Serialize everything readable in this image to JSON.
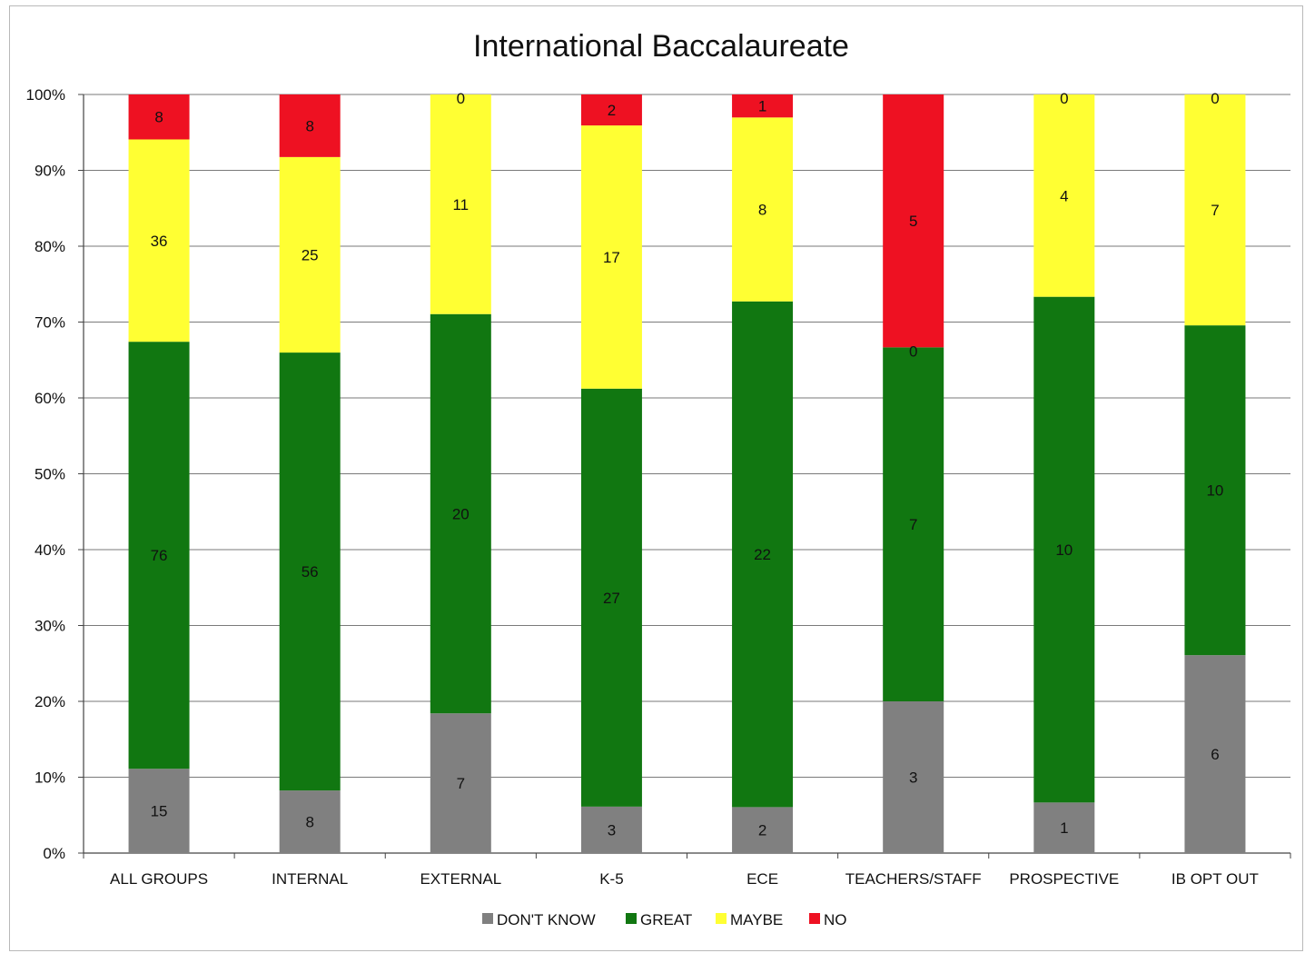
{
  "chart_data": {
    "type": "bar",
    "stacked": "percent",
    "title": "International Baccalaureate",
    "xlabel": "",
    "ylabel": "",
    "ylim": [
      0,
      100
    ],
    "yticks": [
      "0%",
      "10%",
      "20%",
      "30%",
      "40%",
      "50%",
      "60%",
      "70%",
      "80%",
      "90%",
      "100%"
    ],
    "categories": [
      "ALL GROUPS",
      "INTERNAL",
      "EXTERNAL",
      "K-5",
      "ECE",
      "TEACHERS/STAFF",
      "PROSPECTIVE",
      "IB OPT OUT"
    ],
    "series": [
      {
        "name": "DON'T KNOW",
        "color": "#808080",
        "values": [
          15,
          8,
          7,
          3,
          2,
          3,
          1,
          6
        ]
      },
      {
        "name": "GREAT",
        "color": "#117711",
        "values": [
          76,
          56,
          20,
          27,
          22,
          7,
          10,
          10
        ]
      },
      {
        "name": "MAYBE",
        "color": "#ffff33",
        "values": [
          36,
          25,
          11,
          17,
          8,
          0,
          4,
          7
        ]
      },
      {
        "name": "NO",
        "color": "#ee1122",
        "values": [
          8,
          8,
          0,
          2,
          1,
          5,
          0,
          0
        ]
      }
    ],
    "grid": true,
    "legend": "bottom"
  }
}
